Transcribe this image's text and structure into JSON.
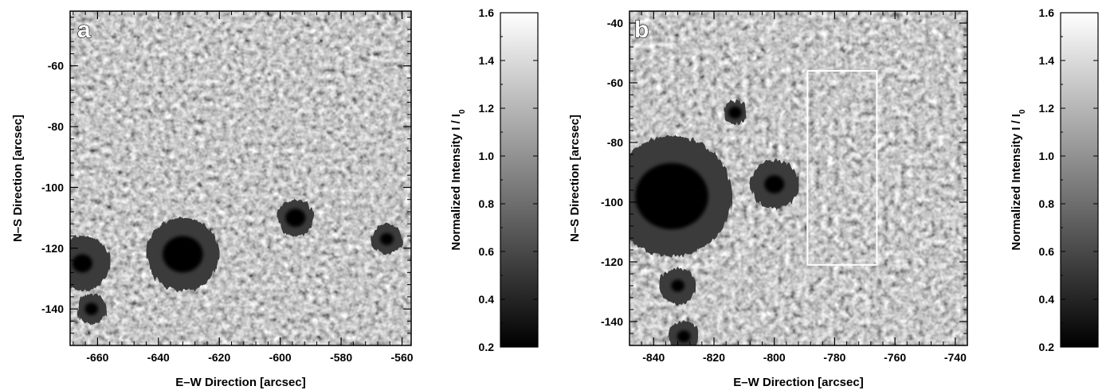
{
  "panels": [
    {
      "tag": "a",
      "xlabel": "E–W Direction   [arcsec]",
      "ylabel": "N–S Direction   [arcsec]",
      "xlim": [
        -669,
        -557
      ],
      "ylim": [
        -152,
        -42
      ],
      "x_ticks": [
        "-660",
        "-640",
        "-620",
        "-600",
        "-580",
        "-560"
      ],
      "x_tick_values": [
        -660,
        -640,
        -620,
        -600,
        -580,
        -560
      ],
      "y_ticks": [
        "-60",
        "-80",
        "-100",
        "-120",
        "-140"
      ],
      "y_tick_values": [
        -60,
        -80,
        -100,
        -120,
        -140
      ],
      "sunspots": [
        {
          "name": "large-sunspot",
          "x": -632,
          "y": -122,
          "umbra_r": 6,
          "penumbra_r": 12
        },
        {
          "name": "small-pore-cluster",
          "x": -595,
          "y": -110,
          "umbra_r": 3,
          "penumbra_r": 6
        },
        {
          "name": "left-edge-spot",
          "x": -665,
          "y": -125,
          "umbra_r": 3,
          "penumbra_r": 9
        },
        {
          "name": "left-edge-spot-lower",
          "x": -662,
          "y": -140,
          "umbra_r": 2,
          "penumbra_r": 5
        },
        {
          "name": "right-edge-pores",
          "x": -565,
          "y": -117,
          "umbra_r": 2,
          "penumbra_r": 5
        }
      ]
    },
    {
      "tag": "b",
      "xlabel": "E–W Direction   [arcsec]",
      "ylabel": "N–S Direction   [arcsec]",
      "xlim": [
        -848,
        -736
      ],
      "ylim": [
        -148,
        -36
      ],
      "x_ticks": [
        "-840",
        "-820",
        "-800",
        "-780",
        "-760",
        "-740"
      ],
      "x_tick_values": [
        -840,
        -820,
        -800,
        -780,
        -760,
        -740
      ],
      "y_ticks": [
        "-40",
        "-60",
        "-80",
        "-100",
        "-120",
        "-140"
      ],
      "y_tick_values": [
        -40,
        -60,
        -80,
        -100,
        -120,
        -140
      ],
      "roi_box": {
        "x0": -789,
        "x1": -766,
        "y0": -121,
        "y1": -56
      },
      "sunspots": [
        {
          "name": "large-sunspot",
          "x": -834,
          "y": -98,
          "umbra_r": 11,
          "penumbra_r": 20
        },
        {
          "name": "mid-pore-group",
          "x": -800,
          "y": -94,
          "umbra_r": 3,
          "penumbra_r": 8
        },
        {
          "name": "upper-pore",
          "x": -813,
          "y": -70,
          "umbra_r": 2,
          "penumbra_r": 4
        },
        {
          "name": "lower-spot",
          "x": -832,
          "y": -128,
          "umbra_r": 2,
          "penumbra_r": 6
        },
        {
          "name": "bottom-spot",
          "x": -830,
          "y": -145,
          "umbra_r": 2,
          "penumbra_r": 5
        }
      ]
    }
  ],
  "colorbars": [
    {
      "label": "Normalized Intensity   I / I",
      "label_subscript": "0",
      "range": [
        0.2,
        1.6
      ],
      "ticks": [
        "0.2",
        "0.4",
        "0.6",
        "0.8",
        "1.0",
        "1.2",
        "1.4",
        "1.6"
      ],
      "tick_values": [
        0.2,
        0.4,
        0.6,
        0.8,
        1.0,
        1.2,
        1.4,
        1.6
      ],
      "colormap": "grayscale"
    },
    {
      "label": "Normalized Intensity   I / I",
      "label_subscript": "0",
      "range": [
        0.2,
        1.6
      ],
      "ticks": [
        "0.2",
        "0.4",
        "0.6",
        "0.8",
        "1.0",
        "1.2",
        "1.4",
        "1.6"
      ],
      "tick_values": [
        0.2,
        0.4,
        0.6,
        0.8,
        1.0,
        1.2,
        1.4,
        1.6
      ],
      "colormap": "grayscale"
    }
  ],
  "colors": {
    "background": "#ffffff",
    "granulation_base": "#8f8f8f",
    "umbra": "#050505",
    "penumbra": "#3a3a3a",
    "roi_box": "#ffffff"
  }
}
